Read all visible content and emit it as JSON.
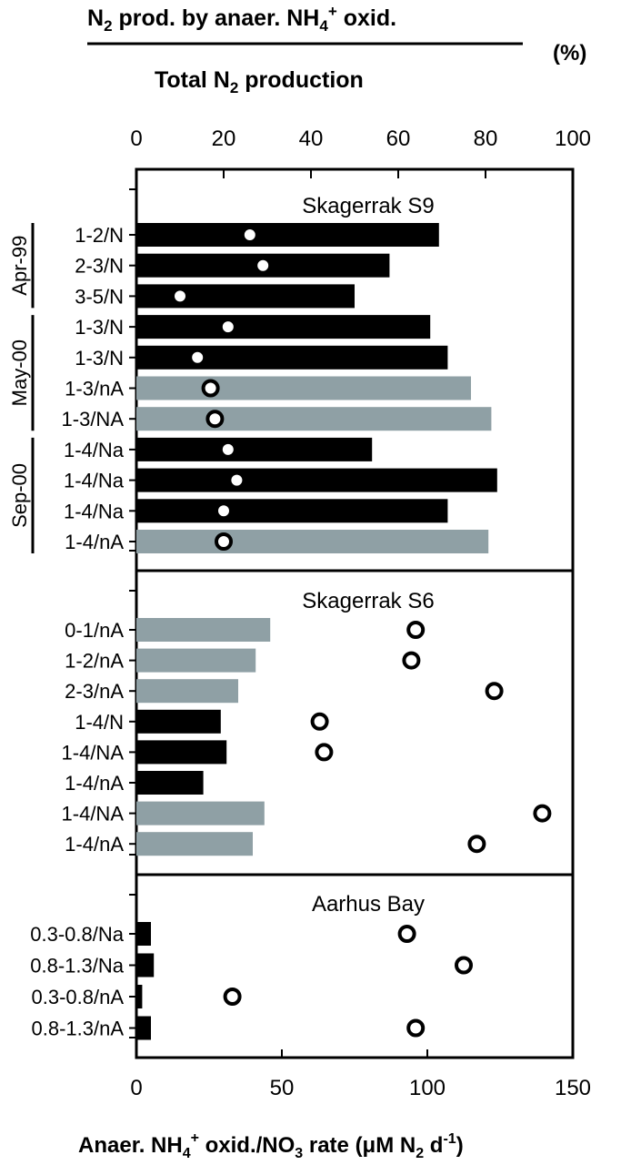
{
  "chart_data": {
    "type": "bar",
    "orientation": "horizontal",
    "top_axis": {
      "label_numerator": "N",
      "label_numerator_sub": "2",
      "label_numerator_rest": " prod. by anaer. NH",
      "label_numerator_sub2": "4",
      "label_numerator_sup": "+",
      "label_numerator_end": " oxid.",
      "label_denominator": "Total N",
      "label_denominator_sub": "2",
      "label_denominator_rest": " production",
      "unit": "(%)",
      "range": [
        0,
        100
      ],
      "ticks": [
        "0",
        "20",
        "40",
        "60",
        "80",
        "100"
      ]
    },
    "bottom_axis": {
      "label_pre": "Anaer. NH",
      "label_sub1": "4",
      "label_sup1": "+",
      "label_mid": " oxid./NO",
      "label_sub2": "3",
      "label_mid2": " rate (μM N",
      "label_sub3": "2",
      "label_mid3": " d",
      "label_sup2": "-1",
      "label_end": ")",
      "range": [
        0,
        150
      ],
      "ticks": [
        "0",
        "50",
        "100",
        "150"
      ]
    },
    "legend": {
      "bars": "Anaer. NH4+ oxid./NO3 rate",
      "circles": "N2 prod. by anaer. NH4+ oxid. / Total N2 production"
    },
    "colors": {
      "black_bar": "#000000",
      "grey_bar": "#8fa0a5"
    },
    "panels": [
      {
        "title": "Skagerrak S9",
        "groups": [
          {
            "label": "Apr-99",
            "rows": [
              0,
              2
            ]
          },
          {
            "label": "May-00",
            "rows": [
              3,
              6
            ]
          },
          {
            "label": "Sep-00",
            "rows": [
              7,
              10
            ]
          }
        ],
        "rows": [
          {
            "label": "1-2/N",
            "rate": 104,
            "percent": 26,
            "color": "black"
          },
          {
            "label": "2-3/N",
            "rate": 87,
            "percent": 29,
            "color": "black"
          },
          {
            "label": "3-5/N",
            "rate": 75,
            "percent": 10,
            "color": "black"
          },
          {
            "label": "1-3/N",
            "rate": 101,
            "percent": 21,
            "color": "black"
          },
          {
            "label": "1-3/N",
            "rate": 107,
            "percent": 14,
            "color": "black"
          },
          {
            "label": "1-3/nA",
            "rate": 115,
            "percent": 17,
            "color": "grey"
          },
          {
            "label": "1-3/NA",
            "rate": 122,
            "percent": 18,
            "color": "grey"
          },
          {
            "label": "1-4/Na",
            "rate": 81,
            "percent": 21,
            "color": "black"
          },
          {
            "label": "1-4/Na",
            "rate": 124,
            "percent": 23,
            "color": "black"
          },
          {
            "label": "1-4/Na",
            "rate": 107,
            "percent": 20,
            "color": "black"
          },
          {
            "label": "1-4/nA",
            "rate": 121,
            "percent": 20,
            "color": "grey"
          }
        ]
      },
      {
        "title": "Skagerrak S6",
        "groups": [],
        "rows": [
          {
            "label": "0-1/nA",
            "rate": 46,
            "percent": 64,
            "color": "grey"
          },
          {
            "label": "1-2/nA",
            "rate": 41,
            "percent": 63,
            "color": "grey"
          },
          {
            "label": "2-3/nA",
            "rate": 35,
            "percent": 82,
            "color": "grey"
          },
          {
            "label": "1-4/N",
            "rate": 29,
            "percent": 42,
            "color": "black"
          },
          {
            "label": "1-4/NA",
            "rate": 31,
            "percent": 43,
            "color": "black"
          },
          {
            "label": "1-4/nA",
            "rate": 23,
            "percent": null,
            "color": "black"
          },
          {
            "label": "1-4/NA",
            "rate": 44,
            "percent": 93,
            "color": "grey"
          },
          {
            "label": "1-4/nA",
            "rate": 40,
            "percent": 78,
            "color": "grey"
          }
        ]
      },
      {
        "title": "Aarhus Bay",
        "groups": [],
        "rows": [
          {
            "label": "0.3-0.8/Na",
            "rate": 5,
            "percent": 62,
            "color": "black"
          },
          {
            "label": "0.8-1.3/Na",
            "rate": 6,
            "percent": 75,
            "color": "black"
          },
          {
            "label": "0.3-0.8/nA",
            "rate": 2,
            "percent": 22,
            "color": "black"
          },
          {
            "label": "0.8-1.3/nA",
            "rate": 5,
            "percent": 64,
            "color": "black"
          }
        ]
      }
    ]
  }
}
